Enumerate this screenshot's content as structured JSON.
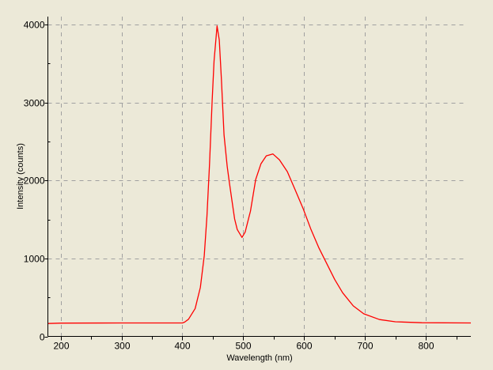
{
  "chart_data": {
    "type": "line",
    "title": "",
    "xlabel": "Wavelength (nm)",
    "ylabel": "Intensity (counts)",
    "xlim": [
      179,
      874
    ],
    "ylim": [
      0,
      4100
    ],
    "x_ticks": [
      200,
      300,
      400,
      500,
      600,
      700,
      800
    ],
    "x_minor_step": 50,
    "y_ticks": [
      0,
      1000,
      2000,
      3000,
      4000
    ],
    "y_minor_step": 500,
    "grid": true,
    "legend": "none",
    "colors": {
      "series": "#FF0000",
      "grid": "#A0A0A0",
      "background": "#ECE9D8",
      "axis": "#000000"
    },
    "series": [
      {
        "x": [
          179,
          200,
          300,
          400,
          403.5,
          410,
          421,
          429.5,
          436,
          440.4,
          444.7,
          449,
          452,
          457,
          460.7,
          464.2,
          468.5,
          473.7,
          477.2,
          481.5,
          485.9,
          490.2,
          498,
          503.2,
          509.7,
          511.9,
          520.5,
          529.2,
          537.9,
          548.7,
          559.5,
          572.5,
          585.5,
          598.4,
          611.4,
          624.4,
          637.4,
          650.4,
          663.4,
          680.8,
          698,
          724,
          750,
          793.4,
          874
        ],
        "y": [
          165,
          170,
          172,
          172,
          182,
          220,
          357,
          628,
          1033,
          1539,
          2214,
          3024,
          3530,
          3980,
          3800,
          3294,
          2585,
          2180,
          1977,
          1742,
          1505,
          1370,
          1269,
          1337,
          1539,
          1606,
          2011,
          2214,
          2315,
          2339,
          2264,
          2112,
          1876,
          1640,
          1370,
          1134,
          932,
          729,
          560,
          391,
          290,
          216,
          188,
          175,
          172
        ]
      }
    ]
  }
}
